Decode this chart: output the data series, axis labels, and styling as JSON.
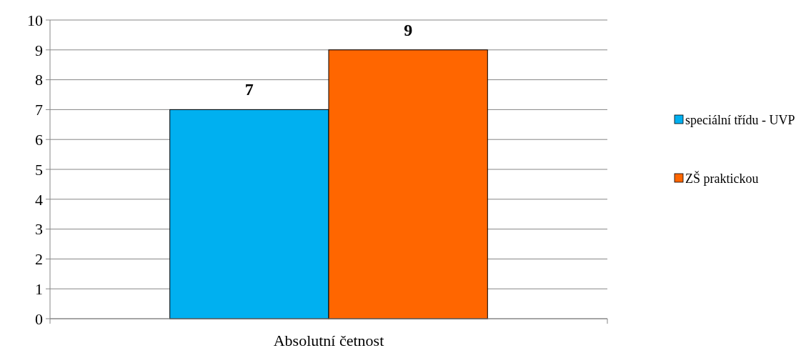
{
  "chart_data": {
    "type": "bar",
    "categories": [
      "Absolutní četnost"
    ],
    "series": [
      {
        "name": "speciální třídu - UVP",
        "color": "#00b0f0",
        "values": [
          7
        ]
      },
      {
        "name": "ZŠ praktickou",
        "color": "#ff6600",
        "values": [
          9
        ]
      }
    ],
    "ylim": [
      0,
      10
    ],
    "yticks": [
      0,
      1,
      2,
      3,
      4,
      5,
      6,
      7,
      8,
      9,
      10
    ],
    "grid": "y",
    "legend": "right",
    "data_labels": true
  }
}
